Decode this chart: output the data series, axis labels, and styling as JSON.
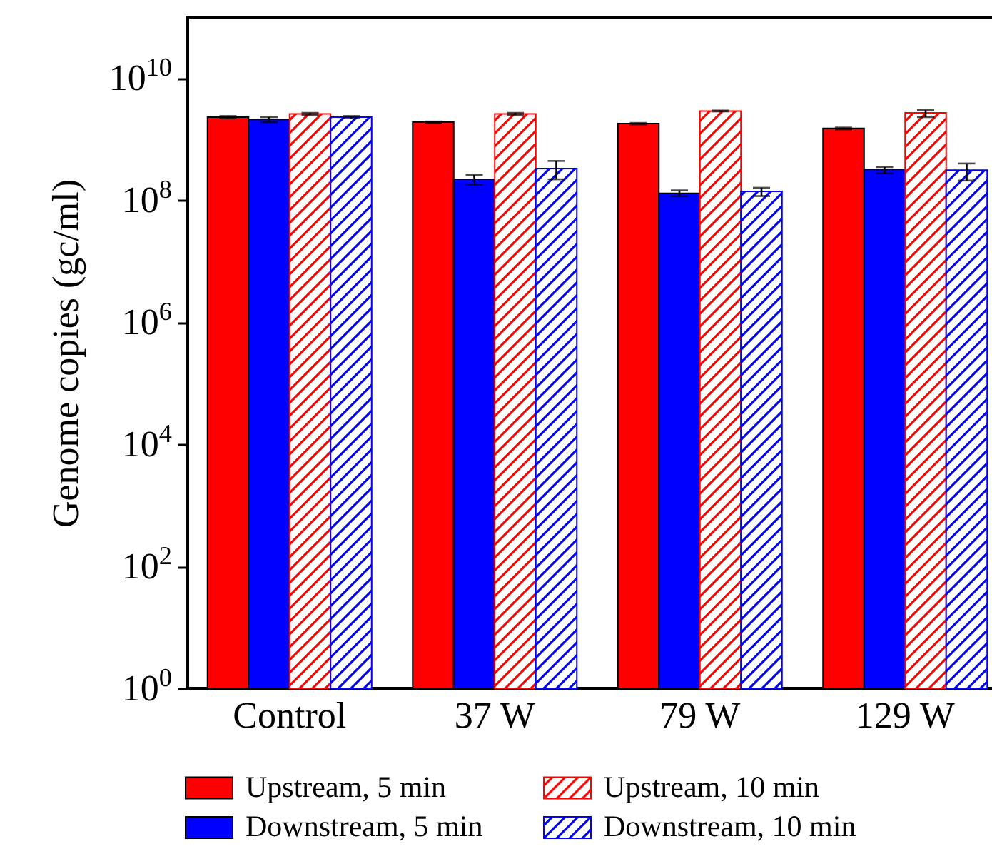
{
  "chart_data": {
    "type": "bar",
    "ylabel": "Genome copies (gc/ml)",
    "categories": [
      "Control",
      "37 W",
      "79 W",
      "129 W"
    ],
    "series": [
      {
        "name": "Upstream, 5 min",
        "color": "#ff0000",
        "values": [
          2300000000.0,
          1900000000.0,
          1800000000.0,
          1500000000.0
        ],
        "errors": [
          [
            2200000000.0,
            2400000000.0
          ],
          [
            1850000000.0,
            1950000000.0
          ],
          [
            1750000000.0,
            1850000000.0
          ],
          [
            1450000000.0,
            1550000000.0
          ]
        ]
      },
      {
        "name": "Downstream, 5 min",
        "color": "#0000ff",
        "values": [
          2100000000.0,
          220000000.0,
          130000000.0,
          320000000.0
        ],
        "errors": [
          [
            1900000000.0,
            2300000000.0
          ],
          [
            180000000.0,
            260000000.0
          ],
          [
            117000000.0,
            145000000.0
          ],
          [
            275000000.0,
            350000000.0
          ]
        ]
      },
      {
        "name": "Upstream, 10 min",
        "color": "#ff0000",
        "values": [
          2600000000.0,
          2600000000.0,
          2900000000.0,
          2700000000.0
        ],
        "errors": [
          [
            2500000000.0,
            2700000000.0
          ],
          [
            2500000000.0,
            2700000000.0
          ],
          [
            2850000000.0,
            2950000000.0
          ],
          [
            2300000000.0,
            3000000000.0
          ]
        ]
      },
      {
        "name": "Downstream, 10 min",
        "color": "#0000ff",
        "values": [
          2300000000.0,
          330000000.0,
          140000000.0,
          310000000.0
        ],
        "errors": [
          [
            2200000000.0,
            2400000000.0
          ],
          [
            220000000.0,
            440000000.0
          ],
          [
            117000000.0,
            160000000.0
          ],
          [
            210000000.0,
            400000000.0
          ]
        ]
      }
    ],
    "log": true,
    "ylim": [
      1,
      100000000000.0
    ],
    "yticks": [
      {
        "value": 1,
        "label": "10$^{0}$"
      },
      {
        "value": 100,
        "label": "10$^{2}$"
      },
      {
        "value": 10000,
        "label": "10$^{4}$"
      },
      {
        "value": 1000000,
        "label": "10$^{6}$"
      },
      {
        "value": 100000000,
        "label": "10$^{8}$"
      },
      {
        "value": 10000000000,
        "label": "10$^{10}$"
      }
    ],
    "legend": "bottom",
    "grid": false
  }
}
